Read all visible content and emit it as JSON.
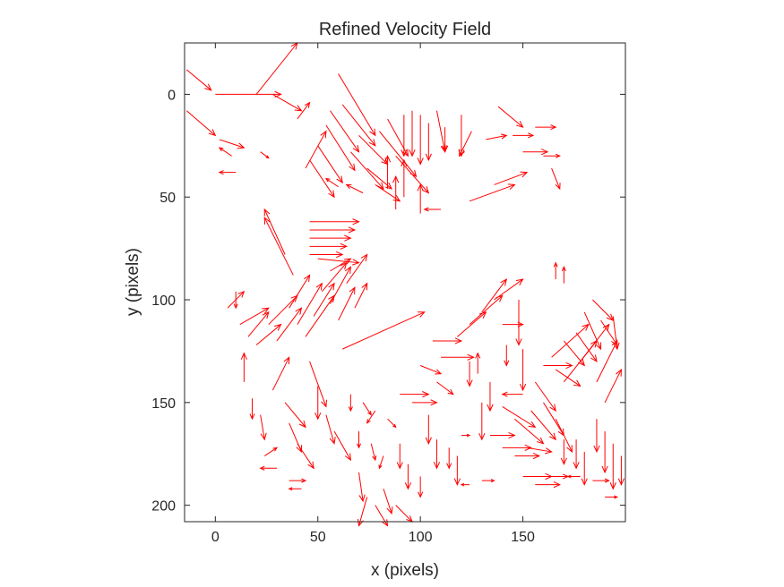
{
  "chart_data": {
    "type": "quiver",
    "title": "Refined Velocity Field",
    "xlabel": "x (pixels)",
    "ylabel": "y (pixels)",
    "xlim": [
      -15,
      200
    ],
    "ylim": [
      -25,
      208
    ],
    "y_reversed": true,
    "grid": false,
    "legend": "none",
    "xticks": [
      0,
      50,
      100,
      150
    ],
    "yticks": [
      0,
      50,
      100,
      150,
      200
    ],
    "color": "#ff0000",
    "vectors": [
      [
        -14,
        8,
        14,
        12
      ],
      [
        -14,
        -12,
        12,
        10
      ],
      [
        0,
        0,
        32,
        0
      ],
      [
        20,
        0,
        20,
        -25
      ],
      [
        28,
        0,
        14,
        8
      ],
      [
        40,
        12,
        6,
        -8
      ],
      [
        2,
        22,
        12,
        4
      ],
      [
        8,
        30,
        -6,
        -4
      ],
      [
        10,
        38,
        -8,
        0
      ],
      [
        22,
        28,
        4,
        3
      ],
      [
        44,
        36,
        10,
        -18
      ],
      [
        46,
        32,
        12,
        18
      ],
      [
        50,
        25,
        12,
        18
      ],
      [
        54,
        15,
        14,
        22
      ],
      [
        56,
        8,
        14,
        20
      ],
      [
        60,
        -10,
        18,
        30
      ],
      [
        62,
        5,
        16,
        20
      ],
      [
        66,
        28,
        16,
        18
      ],
      [
        70,
        20,
        14,
        14
      ],
      [
        74,
        36,
        12,
        10
      ],
      [
        78,
        44,
        12,
        8
      ],
      [
        80,
        18,
        18,
        22
      ],
      [
        84,
        12,
        10,
        18
      ],
      [
        88,
        30,
        16,
        18
      ],
      [
        92,
        10,
        0,
        20
      ],
      [
        96,
        8,
        0,
        22
      ],
      [
        100,
        10,
        0,
        24
      ],
      [
        104,
        14,
        0,
        18
      ],
      [
        108,
        8,
        4,
        20
      ],
      [
        112,
        16,
        0,
        12
      ],
      [
        120,
        10,
        0,
        20
      ],
      [
        125,
        18,
        -6,
        12
      ],
      [
        132,
        22,
        10,
        -2
      ],
      [
        138,
        6,
        12,
        10
      ],
      [
        145,
        20,
        10,
        0
      ],
      [
        150,
        28,
        12,
        0
      ],
      [
        156,
        16,
        10,
        0
      ],
      [
        160,
        30,
        8,
        0
      ],
      [
        164,
        36,
        4,
        10
      ],
      [
        136,
        44,
        16,
        -6
      ],
      [
        124,
        52,
        22,
        -8
      ],
      [
        110,
        56,
        -8,
        0
      ],
      [
        100,
        58,
        0,
        -14
      ],
      [
        92,
        50,
        0,
        -18
      ],
      [
        88,
        56,
        0,
        -16
      ],
      [
        84,
        46,
        0,
        -16
      ],
      [
        72,
        48,
        -8,
        -4
      ],
      [
        60,
        45,
        -6,
        -4
      ],
      [
        46,
        62,
        24,
        0
      ],
      [
        46,
        66,
        22,
        0
      ],
      [
        46,
        70,
        20,
        0
      ],
      [
        46,
        74,
        18,
        0
      ],
      [
        46,
        78,
        16,
        0
      ],
      [
        50,
        80,
        20,
        2
      ],
      [
        56,
        86,
        10,
        -6
      ],
      [
        38,
        88,
        -14,
        -28
      ],
      [
        34,
        78,
        -10,
        -22
      ],
      [
        166,
        90,
        0,
        -8
      ],
      [
        170,
        92,
        0,
        -8
      ],
      [
        10,
        96,
        0,
        8
      ],
      [
        6,
        104,
        8,
        -8
      ],
      [
        12,
        112,
        14,
        -8
      ],
      [
        16,
        118,
        10,
        -12
      ],
      [
        20,
        122,
        12,
        -10
      ],
      [
        26,
        112,
        14,
        -14
      ],
      [
        30,
        120,
        12,
        -16
      ],
      [
        36,
        104,
        10,
        -16
      ],
      [
        40,
        112,
        12,
        -20
      ],
      [
        44,
        118,
        14,
        -20
      ],
      [
        48,
        108,
        10,
        -16
      ],
      [
        52,
        96,
        12,
        -14
      ],
      [
        56,
        102,
        10,
        -18
      ],
      [
        60,
        110,
        8,
        -16
      ],
      [
        64,
        92,
        10,
        -14
      ],
      [
        68,
        104,
        6,
        -12
      ],
      [
        14,
        140,
        0,
        -14
      ],
      [
        18,
        148,
        0,
        10
      ],
      [
        22,
        156,
        2,
        12
      ],
      [
        28,
        144,
        8,
        -16
      ],
      [
        34,
        150,
        10,
        12
      ],
      [
        36,
        160,
        6,
        14
      ],
      [
        40,
        170,
        8,
        12
      ],
      [
        46,
        130,
        8,
        22
      ],
      [
        50,
        142,
        0,
        16
      ],
      [
        54,
        156,
        4,
        14
      ],
      [
        58,
        164,
        8,
        14
      ],
      [
        24,
        176,
        6,
        -4
      ],
      [
        30,
        182,
        -8,
        0
      ],
      [
        36,
        188,
        8,
        0
      ],
      [
        42,
        192,
        -6,
        0
      ],
      [
        66,
        146,
        0,
        8
      ],
      [
        72,
        150,
        4,
        6
      ],
      [
        78,
        154,
        -4,
        6
      ],
      [
        84,
        158,
        4,
        4
      ],
      [
        70,
        164,
        0,
        8
      ],
      [
        76,
        170,
        2,
        8
      ],
      [
        82,
        176,
        -2,
        6
      ],
      [
        70,
        184,
        2,
        14
      ],
      [
        74,
        196,
        -4,
        14
      ],
      [
        78,
        200,
        6,
        10
      ],
      [
        82,
        192,
        4,
        12
      ],
      [
        88,
        200,
        8,
        8
      ],
      [
        62,
        124,
        40,
        -18
      ],
      [
        106,
        120,
        14,
        0
      ],
      [
        110,
        128,
        16,
        0
      ],
      [
        100,
        132,
        10,
        4
      ],
      [
        108,
        140,
        8,
        6
      ],
      [
        90,
        146,
        14,
        0
      ],
      [
        96,
        150,
        12,
        0
      ],
      [
        104,
        156,
        0,
        14
      ],
      [
        108,
        168,
        0,
        14
      ],
      [
        114,
        172,
        0,
        10
      ],
      [
        120,
        166,
        4,
        0
      ],
      [
        90,
        170,
        0,
        12
      ],
      [
        94,
        180,
        0,
        12
      ],
      [
        100,
        186,
        0,
        10
      ],
      [
        118,
        176,
        0,
        14
      ],
      [
        124,
        190,
        -4,
        0
      ],
      [
        130,
        188,
        6,
        0
      ],
      [
        118,
        118,
        14,
        -12
      ],
      [
        124,
        112,
        16,
        -14
      ],
      [
        130,
        106,
        12,
        -16
      ],
      [
        136,
        100,
        14,
        -10
      ],
      [
        140,
        112,
        10,
        0
      ],
      [
        142,
        122,
        0,
        10
      ],
      [
        148,
        100,
        0,
        22
      ],
      [
        150,
        124,
        0,
        20
      ],
      [
        150,
        146,
        -10,
        0
      ],
      [
        156,
        140,
        10,
        14
      ],
      [
        160,
        132,
        14,
        0
      ],
      [
        166,
        134,
        12,
        8
      ],
      [
        170,
        120,
        10,
        12
      ],
      [
        176,
        116,
        10,
        14
      ],
      [
        180,
        106,
        8,
        18
      ],
      [
        184,
        100,
        10,
        10
      ],
      [
        188,
        110,
        8,
        12
      ],
      [
        164,
        128,
        18,
        -16
      ],
      [
        170,
        140,
        16,
        -20
      ],
      [
        178,
        130,
        14,
        -18
      ],
      [
        186,
        140,
        10,
        -20
      ],
      [
        190,
        150,
        8,
        -16
      ],
      [
        194,
        108,
        2,
        16
      ],
      [
        140,
        152,
        16,
        10
      ],
      [
        146,
        158,
        14,
        12
      ],
      [
        154,
        154,
        12,
        14
      ],
      [
        160,
        150,
        10,
        16
      ],
      [
        166,
        158,
        8,
        16
      ],
      [
        170,
        168,
        0,
        12
      ],
      [
        134,
        166,
        12,
        0
      ],
      [
        140,
        172,
        14,
        0
      ],
      [
        146,
        176,
        12,
        0
      ],
      [
        152,
        172,
        12,
        2
      ],
      [
        150,
        186,
        14,
        0
      ],
      [
        156,
        190,
        12,
        0
      ],
      [
        162,
        186,
        10,
        0
      ],
      [
        176,
        168,
        0,
        14
      ],
      [
        180,
        174,
        0,
        16
      ],
      [
        186,
        158,
        0,
        16
      ],
      [
        190,
        164,
        0,
        20
      ],
      [
        194,
        170,
        0,
        22
      ],
      [
        198,
        176,
        0,
        14
      ],
      [
        178,
        186,
        -6,
        0
      ],
      [
        184,
        188,
        8,
        0
      ],
      [
        190,
        196,
        6,
        0
      ],
      [
        130,
        150,
        0,
        18
      ],
      [
        134,
        140,
        0,
        14
      ],
      [
        128,
        136,
        0,
        -10
      ],
      [
        124,
        130,
        0,
        12
      ]
    ]
  }
}
